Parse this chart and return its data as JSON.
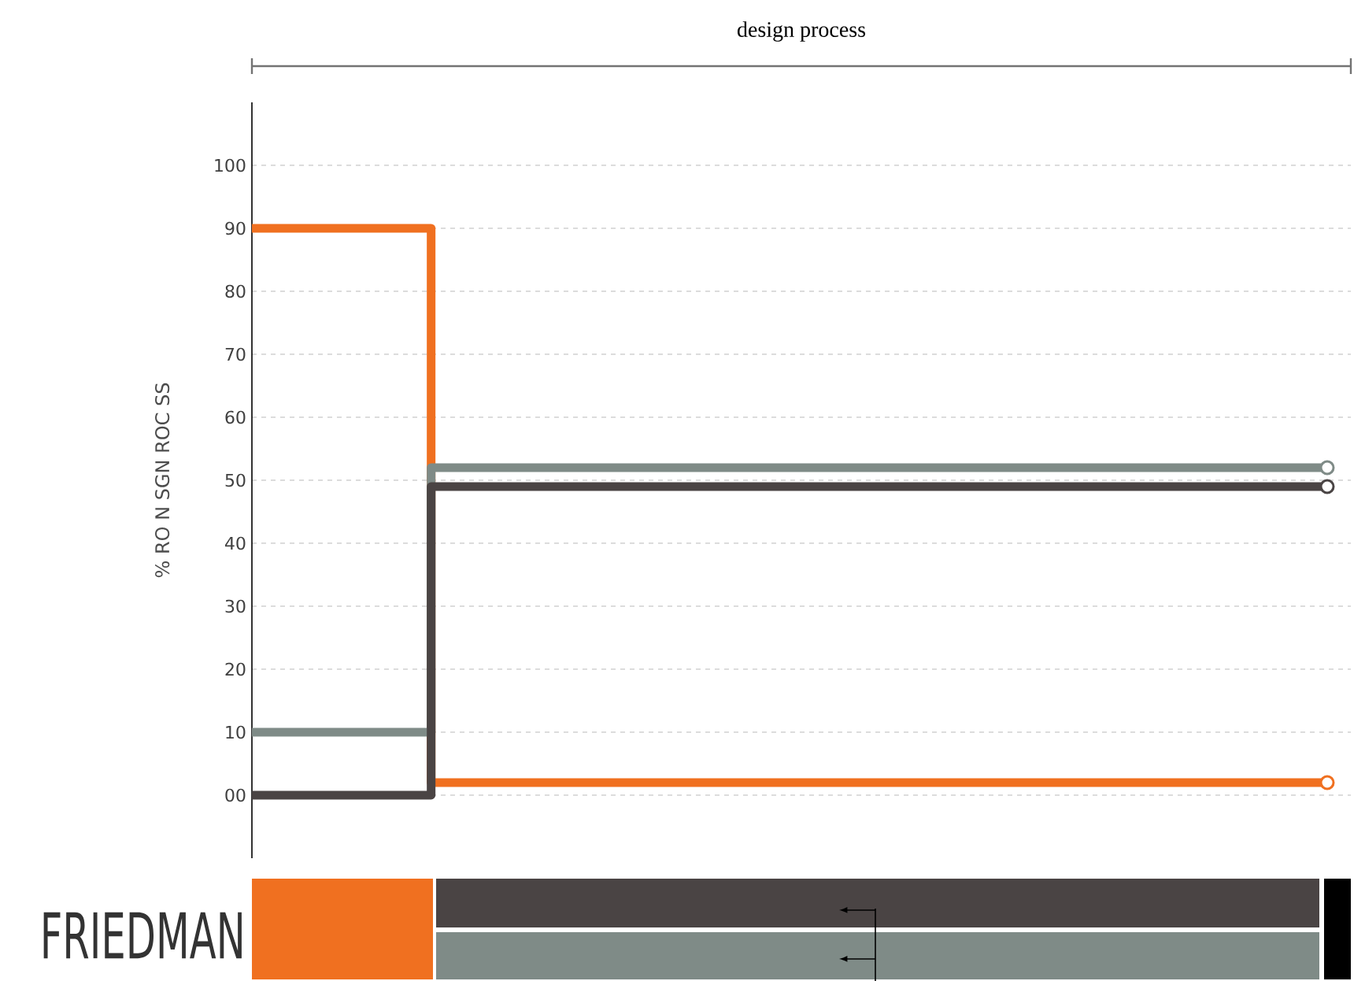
{
  "chart_data": {
    "type": "step",
    "xlabel": "design process",
    "ylabel": "% RO N SGN ROC SS",
    "categories": [
      null,
      null,
      null,
      null,
      null,
      null,
      null
    ],
    "series": [
      {
        "color": "#f07020",
        "marker": "none",
        "values": [
          90,
          2,
          2,
          2,
          2,
          2,
          2
        ]
      },
      {
        "color": "#7f8b87",
        "marker": "none",
        "values": [
          10,
          52,
          52,
          52,
          52,
          52,
          52
        ]
      },
      {
        "color": "#4a4444",
        "marker": "none",
        "values": [
          0,
          49,
          49,
          49,
          49,
          49,
          49
        ]
      },
      {
        "type": "scatter",
        "color": "#f07020",
        "values": [
          null,
          null,
          null,
          null,
          null,
          null,
          2
        ]
      },
      {
        "type": "scatter",
        "color": "#7f8b87",
        "values": [
          null,
          null,
          null,
          null,
          null,
          null,
          52
        ]
      },
      {
        "type": "scatter",
        "color": "#4a4444",
        "values": [
          null,
          null,
          null,
          null,
          null,
          null,
          49
        ]
      }
    ],
    "ylim": [
      -10,
      110
    ],
    "yticks": [
      {
        "value": 0,
        "label": "00"
      },
      10,
      20,
      30,
      40,
      50,
      60,
      70,
      80,
      90,
      100
    ],
    "grid": "y",
    "marker": "circle",
    "line_style": "solid",
    "annotations": [
      "FRIEDMAN"
    ]
  }
}
